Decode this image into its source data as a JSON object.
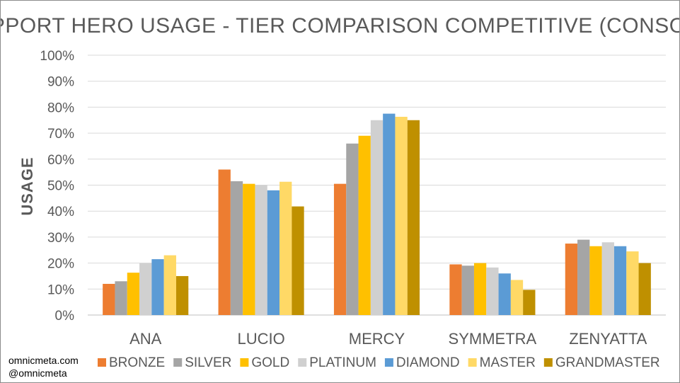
{
  "chart_data": {
    "type": "bar",
    "title": "SUPPORT HERO USAGE - TIER COMPARISON COMPETITIVE (CONSOLE)",
    "xlabel": "",
    "ylabel": "USAGE",
    "ylim": [
      0,
      100
    ],
    "y_ticks": [
      "0%",
      "10%",
      "20%",
      "30%",
      "40%",
      "50%",
      "60%",
      "70%",
      "80%",
      "90%",
      "100%"
    ],
    "grid": true,
    "legend_position": "bottom",
    "categories": [
      "ANA",
      "LUCIO",
      "MERCY",
      "SYMMETRA",
      "ZENYATTA"
    ],
    "series": [
      {
        "name": "BRONZE",
        "color": "#ED7D31",
        "values": [
          12.0,
          56.0,
          50.5,
          19.5,
          27.5
        ]
      },
      {
        "name": "SILVER",
        "color": "#A5A5A5",
        "values": [
          13.0,
          51.5,
          66.0,
          19.0,
          29.0
        ]
      },
      {
        "name": "GOLD",
        "color": "#FFC000",
        "values": [
          16.3,
          50.5,
          69.0,
          20.0,
          26.5
        ]
      },
      {
        "name": "PLATINUM",
        "color": "#D0D0D0",
        "values": [
          20.0,
          50.0,
          75.0,
          18.3,
          28.0
        ]
      },
      {
        "name": "DIAMOND",
        "color": "#5B9BD5",
        "values": [
          21.5,
          48.0,
          77.5,
          16.0,
          26.5
        ]
      },
      {
        "name": "MASTER",
        "color": "#FFD966",
        "values": [
          23.0,
          51.3,
          76.3,
          13.5,
          24.5
        ]
      },
      {
        "name": "GRANDMASTER",
        "color": "#BF9000",
        "values": [
          15.0,
          41.8,
          75.0,
          9.7,
          20.0
        ]
      }
    ]
  },
  "credits": {
    "line1": "omnicmeta.com",
    "line2": "@omnicmeta"
  },
  "colors": {
    "text": "#595959",
    "gridline": "#D9D9D9",
    "axis": "#BFBFBF"
  }
}
